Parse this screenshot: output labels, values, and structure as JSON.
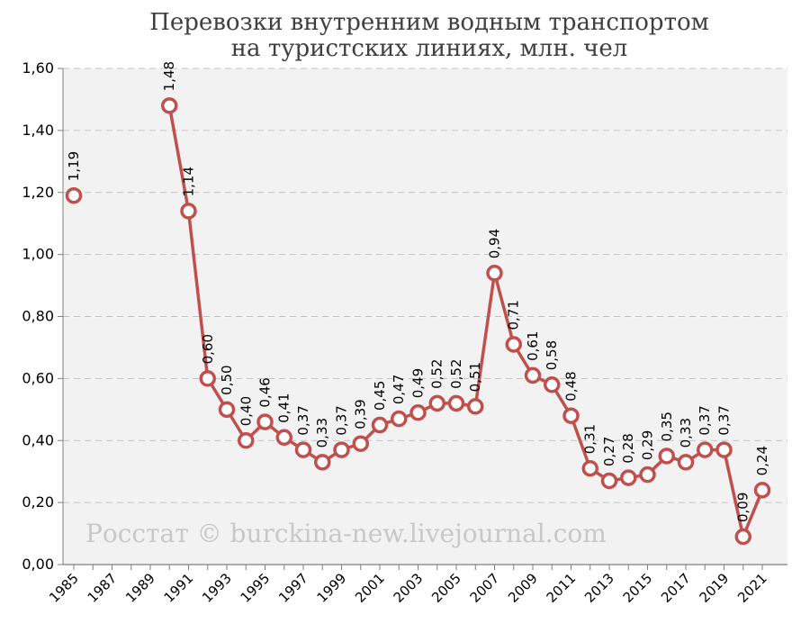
{
  "chart_data": {
    "type": "line",
    "title_lines": [
      "Перевозки внутренним водным транспортом",
      "на туристских линиях, млн. чел"
    ],
    "watermark": "Росстат © burckina-new.livejournal.com",
    "xlabel": "",
    "ylabel": "",
    "ylim": [
      0,
      1.6
    ],
    "yticks": [
      "0,00",
      "0,20",
      "0,40",
      "0,60",
      "0,80",
      "1,00",
      "1,20",
      "1,40",
      "1,60"
    ],
    "ytick_values": [
      0,
      0.2,
      0.4,
      0.6,
      0.8,
      1.0,
      1.2,
      1.4,
      1.6
    ],
    "xlim": [
      1985,
      2021
    ],
    "xticks": [
      "1985",
      "1987",
      "1989",
      "1991",
      "1993",
      "1995",
      "1997",
      "1999",
      "2001",
      "2003",
      "2005",
      "2007",
      "2009",
      "2011",
      "2013",
      "2015",
      "2017",
      "2019",
      "2021"
    ],
    "grid": true,
    "line_color": "#c0504d",
    "plot_bg": "#f2f2f2",
    "grid_color": "#ffffff",
    "series": [
      {
        "points": [
          {
            "x": 1985,
            "y": 1.19,
            "label": "1,19"
          },
          {
            "x": 1990,
            "y": 1.48,
            "label": "1,48"
          },
          {
            "x": 1991,
            "y": 1.14,
            "label": "1,14"
          },
          {
            "x": 1992,
            "y": 0.6,
            "label": "0,60"
          },
          {
            "x": 1993,
            "y": 0.5,
            "label": "0,50"
          },
          {
            "x": 1994,
            "y": 0.4,
            "label": "0,40"
          },
          {
            "x": 1995,
            "y": 0.46,
            "label": "0,46"
          },
          {
            "x": 1996,
            "y": 0.41,
            "label": "0,41"
          },
          {
            "x": 1997,
            "y": 0.37,
            "label": "0,37"
          },
          {
            "x": 1998,
            "y": 0.33,
            "label": "0,33"
          },
          {
            "x": 1999,
            "y": 0.37,
            "label": "0,37"
          },
          {
            "x": 2000,
            "y": 0.39,
            "label": "0,39"
          },
          {
            "x": 2001,
            "y": 0.45,
            "label": "0,45"
          },
          {
            "x": 2002,
            "y": 0.47,
            "label": "0,47"
          },
          {
            "x": 2003,
            "y": 0.49,
            "label": "0,49"
          },
          {
            "x": 2004,
            "y": 0.52,
            "label": "0,52"
          },
          {
            "x": 2005,
            "y": 0.52,
            "label": "0,52"
          },
          {
            "x": 2006,
            "y": 0.51,
            "label": "0,51"
          },
          {
            "x": 2007,
            "y": 0.94,
            "label": "0,94"
          },
          {
            "x": 2008,
            "y": 0.71,
            "label": "0,71"
          },
          {
            "x": 2009,
            "y": 0.61,
            "label": "0,61"
          },
          {
            "x": 2010,
            "y": 0.58,
            "label": "0,58"
          },
          {
            "x": 2011,
            "y": 0.48,
            "label": "0,48"
          },
          {
            "x": 2012,
            "y": 0.31,
            "label": "0,31"
          },
          {
            "x": 2013,
            "y": 0.27,
            "label": "0,27"
          },
          {
            "x": 2014,
            "y": 0.28,
            "label": "0,28"
          },
          {
            "x": 2015,
            "y": 0.29,
            "label": "0,29"
          },
          {
            "x": 2016,
            "y": 0.35,
            "label": "0,35"
          },
          {
            "x": 2017,
            "y": 0.33,
            "label": "0,33"
          },
          {
            "x": 2018,
            "y": 0.37,
            "label": "0,37"
          },
          {
            "x": 2019,
            "y": 0.37,
            "label": "0,37"
          },
          {
            "x": 2020,
            "y": 0.09,
            "label": "0,09"
          },
          {
            "x": 2021,
            "y": 0.24,
            "label": "0,24"
          }
        ]
      }
    ]
  }
}
